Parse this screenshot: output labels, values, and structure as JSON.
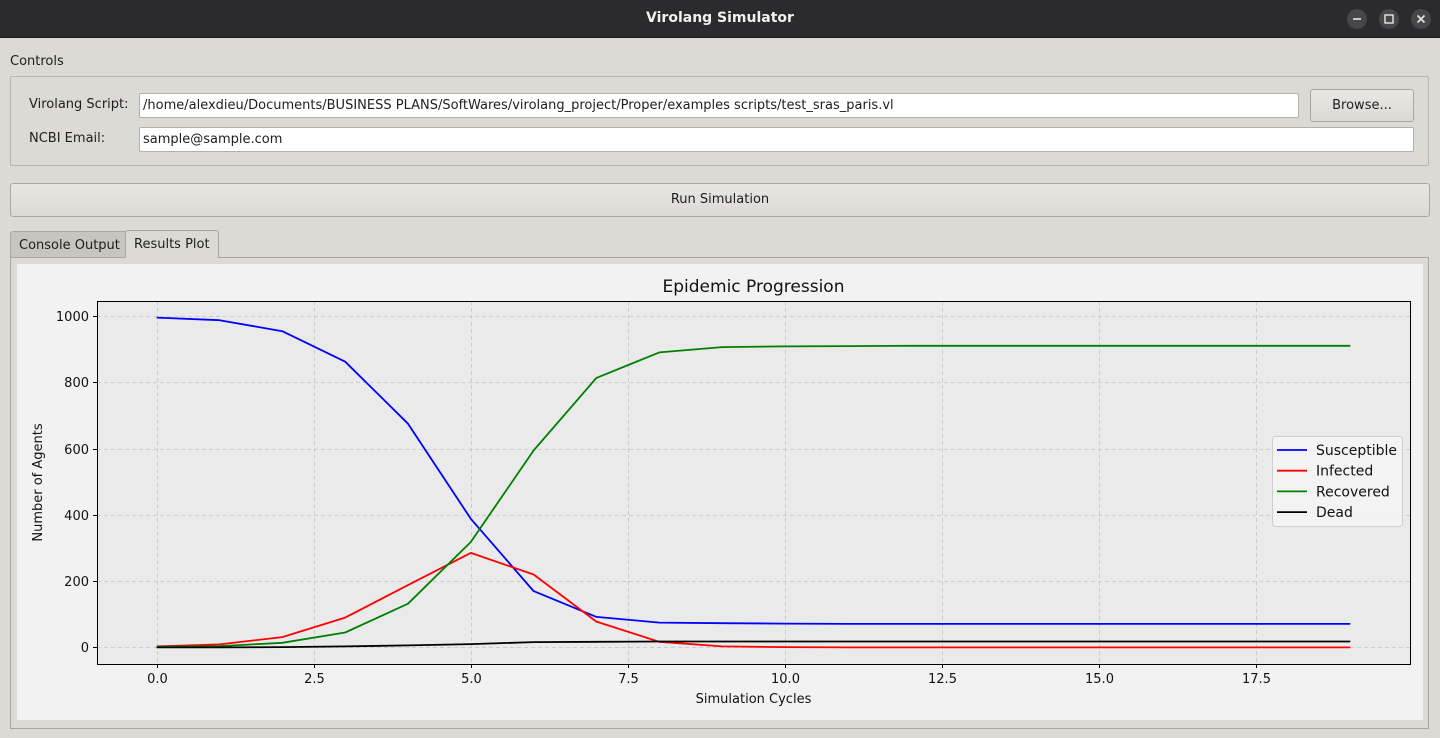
{
  "window": {
    "title": "Virolang Simulator",
    "minimize_icon": "minimize-icon",
    "maximize_icon": "maximize-icon",
    "close_icon": "close-icon"
  },
  "controls": {
    "group_title": "Controls",
    "script_label": "Virolang Script:",
    "script_path": "/home/alexdieu/Documents/BUSINESS PLANS/SoftWares/virolang_project/Proper/examples scripts/test_sras_paris.vl",
    "browse_label": "Browse...",
    "email_label": "NCBI Email:",
    "email_value": "sample@sample.com"
  },
  "run_button_label": "Run Simulation",
  "tabs": [
    {
      "label": "Console Output",
      "active": false
    },
    {
      "label": "Results Plot",
      "active": true
    }
  ],
  "chart_data": {
    "type": "line",
    "title": "Epidemic Progression",
    "xlabel": "Simulation Cycles",
    "ylabel": "Number of Agents",
    "xlim": [
      -0.95,
      19.95
    ],
    "ylim": [
      -50,
      1045
    ],
    "xticks": [
      0.0,
      2.5,
      5.0,
      7.5,
      10.0,
      12.5,
      15.0,
      17.5
    ],
    "xtick_labels": [
      "0.0",
      "2.5",
      "5.0",
      "7.5",
      "10.0",
      "12.5",
      "15.0",
      "17.5"
    ],
    "yticks": [
      0,
      200,
      400,
      600,
      800,
      1000
    ],
    "ytick_labels": [
      "0",
      "200",
      "400",
      "600",
      "800",
      "1000"
    ],
    "grid": true,
    "legend_position": "right",
    "x": [
      0,
      1,
      2,
      3,
      4,
      5,
      6,
      7,
      8,
      9,
      10,
      11,
      12,
      13,
      14,
      15,
      16,
      17,
      18,
      19
    ],
    "series": [
      {
        "name": "Susceptible",
        "color": "#0000ff",
        "values": [
          995,
          987,
          954,
          862,
          675,
          388,
          170,
          92,
          75,
          73,
          72,
          71,
          71,
          71,
          71,
          71,
          71,
          71,
          71,
          71
        ]
      },
      {
        "name": "Infected",
        "color": "#ff0000",
        "values": [
          3,
          9,
          31,
          90,
          188,
          285,
          220,
          78,
          17,
          3,
          1,
          0,
          0,
          0,
          0,
          0,
          0,
          0,
          0,
          0
        ]
      },
      {
        "name": "Recovered",
        "color": "#008000",
        "values": [
          2,
          4,
          14,
          45,
          132,
          318,
          594,
          813,
          890,
          906,
          908,
          909,
          910,
          910,
          910,
          910,
          910,
          910,
          910,
          910
        ]
      },
      {
        "name": "Dead",
        "color": "#000000",
        "values": [
          0,
          0,
          1,
          3,
          6,
          10,
          16,
          17,
          18,
          18,
          18,
          18,
          18,
          18,
          18,
          18,
          18,
          18,
          18,
          18
        ]
      }
    ]
  }
}
